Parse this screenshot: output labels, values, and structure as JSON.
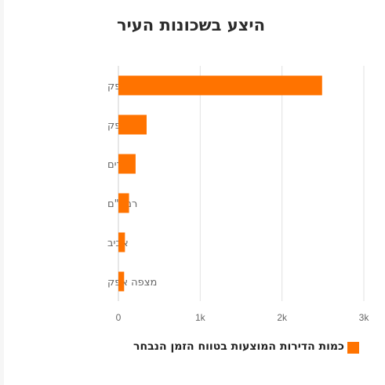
{
  "chart_data": {
    "type": "bar",
    "orientation": "horizontal",
    "title": "היצע בשכונות העיר",
    "categories": [
      "פסגות אפק",
      "נווה אפק",
      "נופרים",
      "רמב\"ם",
      "אביב",
      "מצפה אפק"
    ],
    "series": [
      {
        "name": "כמות הדירות המוצעות בטווח הזמן הנבחר",
        "values": [
          2490,
          345,
          210,
          130,
          80,
          70
        ]
      }
    ],
    "xlim": [
      0,
      3000
    ],
    "x_ticks": [
      0,
      1000,
      2000,
      3000
    ],
    "x_tick_labels": [
      "0",
      "1k",
      "2k",
      "3k"
    ],
    "xlabel": "",
    "ylabel": "",
    "grid": "vertical",
    "legend": "bottom-right",
    "colors": {
      "bar": "#ff7300",
      "grid": "#e2e2e2",
      "text": "#666666",
      "title": "#2b2b2b"
    }
  }
}
